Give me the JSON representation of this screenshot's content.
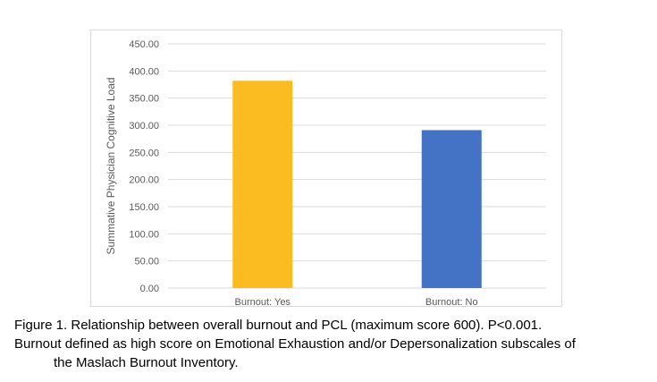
{
  "chart_data": {
    "type": "bar",
    "categories": [
      "Burnout: Yes",
      "Burnout: No"
    ],
    "values": [
      382,
      291
    ],
    "bar_colors": [
      "#FBBC22",
      "#4472C4"
    ],
    "title": "",
    "xlabel": "",
    "ylabel": "Summative Physician Cognitive Load",
    "ylim": [
      0,
      450
    ],
    "yticks": [
      0,
      50,
      100,
      150,
      200,
      250,
      300,
      350,
      400,
      450
    ],
    "ytick_labels": [
      "0.00",
      "50.00",
      "100.00",
      "150.00",
      "200.00",
      "250.00",
      "300.00",
      "350.00",
      "400.00",
      "450.00"
    ],
    "grid": true,
    "legend": "none",
    "gridline_color": "#d9d9d9",
    "text_color": "#595959"
  },
  "caption": {
    "line1": "Figure 1. Relationship between overall burnout and PCL (maximum score 600). P<0.001.",
    "line2": "Burnout defined as high score on Emotional Exhaustion and/or Depersonalization subscales of",
    "line3": "the Maslach Burnout Inventory."
  }
}
